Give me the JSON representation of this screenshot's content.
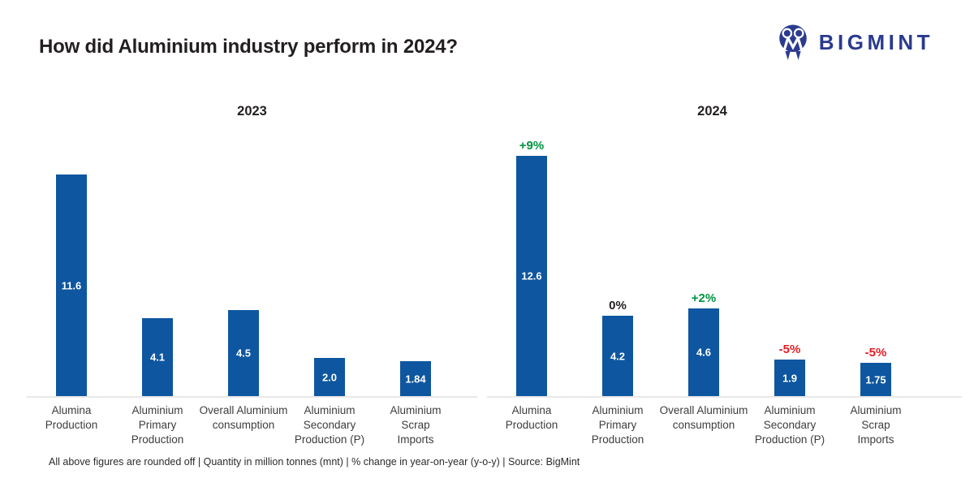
{
  "header": {
    "title": "How did Aluminium industry perform in 2024?",
    "logo_text": "BIGMINT"
  },
  "colors": {
    "bar": "#0E56A0",
    "up": "#009440",
    "flat": "#231F20",
    "down": "#E21D24",
    "logo_navy": "#2A3B8F",
    "axis": "#E8E8E8"
  },
  "chart_data": [
    {
      "type": "bar",
      "title": "2023",
      "categories": [
        "Alumina Production",
        "Aluminium Primary Production",
        "Overall Aluminium consumption",
        "Aluminium Secondary Production (P)",
        "Aluminium Scrap Imports"
      ],
      "display_categories": [
        "Alumina\nProduction",
        "Aluminium\nPrimary\nProduction",
        "Overall Aluminium\nconsumption",
        "Aluminium\nSecondary\nProduction (P)",
        "Aluminium\nScrap\nImports"
      ],
      "values": [
        11.6,
        4.1,
        4.5,
        2.0,
        1.84
      ],
      "value_labels": [
        "11.6",
        "4.1",
        "4.5",
        "2.0",
        "1.84"
      ],
      "unit": "million tonnes (mnt)",
      "ylim": [
        0,
        14
      ],
      "grid": false,
      "legend": false
    },
    {
      "type": "bar",
      "title": "2024",
      "categories": [
        "Alumina Production",
        "Aluminium Primary Production",
        "Overall Aluminium consumption",
        "Aluminium Secondary Production (P)",
        "Aluminium Scrap Imports"
      ],
      "display_categories": [
        "Alumina\nProduction",
        "Aluminium\nPrimary\nProduction",
        "Overall Aluminium\nconsumption",
        "Aluminium\nSecondary\nProduction (P)",
        "Aluminium\nScrap\nImports"
      ],
      "values": [
        12.6,
        4.2,
        4.6,
        1.9,
        1.75
      ],
      "value_labels": [
        "12.6",
        "4.2",
        "4.6",
        "1.9",
        "1.75"
      ],
      "yoy_changes": [
        {
          "label": "+9%",
          "direction": "up"
        },
        {
          "label": "0%",
          "direction": "flat"
        },
        {
          "label": "+2%",
          "direction": "up"
        },
        {
          "label": "-5%",
          "direction": "down"
        },
        {
          "label": "-5%",
          "direction": "down"
        }
      ],
      "unit": "million tonnes (mnt)",
      "ylim": [
        0,
        14
      ],
      "grid": false,
      "legend": false
    }
  ],
  "footer": "All above figures are rounded off | Quantity in million tonnes (mnt) | % change in year-on-year (y-o-y) | Source: BigMint"
}
